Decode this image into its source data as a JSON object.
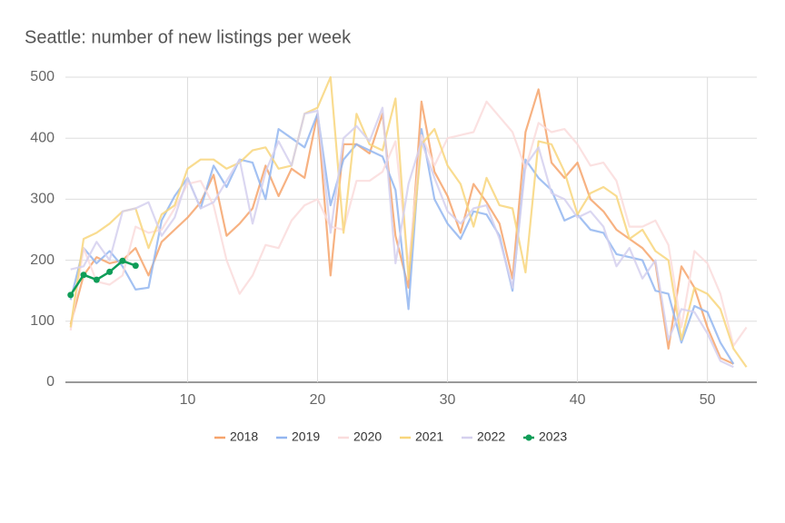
{
  "chart_data": {
    "type": "line",
    "title": "Seattle: number of new listings per week",
    "x": [
      1,
      2,
      3,
      4,
      5,
      6,
      7,
      8,
      9,
      10,
      11,
      12,
      13,
      14,
      15,
      16,
      17,
      18,
      19,
      20,
      21,
      22,
      23,
      24,
      25,
      26,
      27,
      28,
      29,
      30,
      31,
      32,
      33,
      34,
      35,
      36,
      37,
      38,
      39,
      40,
      41,
      42,
      43,
      44,
      45,
      46,
      47,
      48,
      49,
      50,
      51,
      52,
      53
    ],
    "xlim": [
      0.6,
      53.8
    ],
    "xticks": [
      10,
      20,
      30,
      40,
      50
    ],
    "ylim": [
      0,
      500
    ],
    "yticks": [
      0,
      100,
      200,
      300,
      400,
      500
    ],
    "grid": true,
    "legend": "bottom",
    "series": [
      {
        "name": "2018",
        "color": "#f6a46c",
        "values": [
          95,
          175,
          205,
          195,
          200,
          220,
          175,
          230,
          250,
          270,
          295,
          340,
          240,
          260,
          285,
          355,
          305,
          350,
          335,
          440,
          175,
          390,
          390,
          375,
          440,
          240,
          155,
          460,
          345,
          305,
          245,
          325,
          295,
          260,
          170,
          410,
          480,
          360,
          335,
          360,
          300,
          280,
          250,
          235,
          220,
          195,
          55,
          190,
          155,
          90,
          40,
          30,
          null
        ]
      },
      {
        "name": "2019",
        "color": "#93b6f0",
        "values": [
          135,
          220,
          195,
          215,
          190,
          152,
          155,
          265,
          305,
          335,
          285,
          355,
          320,
          365,
          360,
          300,
          415,
          400,
          385,
          440,
          290,
          365,
          390,
          380,
          370,
          315,
          120,
          415,
          300,
          260,
          235,
          280,
          275,
          240,
          150,
          365,
          335,
          315,
          265,
          275,
          250,
          245,
          210,
          205,
          200,
          150,
          145,
          65,
          125,
          115,
          65,
          30,
          null
        ]
      },
      {
        "name": "2020",
        "color": "#fadcdc",
        "values": [
          85,
          220,
          165,
          160,
          175,
          255,
          245,
          250,
          285,
          325,
          330,
          290,
          200,
          145,
          175,
          225,
          220,
          265,
          290,
          300,
          255,
          250,
          330,
          330,
          345,
          395,
          190,
          405,
          355,
          400,
          405,
          410,
          460,
          435,
          410,
          350,
          425,
          410,
          415,
          390,
          355,
          360,
          330,
          255,
          255,
          265,
          225,
          90,
          215,
          195,
          145,
          60,
          90
        ]
      },
      {
        "name": "2021",
        "color": "#f8d67c",
        "values": [
          90,
          235,
          245,
          260,
          280,
          285,
          220,
          275,
          290,
          350,
          365,
          365,
          350,
          360,
          380,
          385,
          350,
          355,
          440,
          450,
          500,
          245,
          440,
          390,
          380,
          465,
          170,
          390,
          415,
          355,
          325,
          255,
          335,
          290,
          285,
          180,
          395,
          390,
          345,
          275,
          310,
          320,
          305,
          235,
          250,
          215,
          200,
          70,
          155,
          145,
          120,
          55,
          25
        ]
      },
      {
        "name": "2022",
        "color": "#d5d0ee",
        "values": [
          185,
          190,
          230,
          200,
          280,
          285,
          295,
          240,
          270,
          335,
          285,
          295,
          330,
          365,
          260,
          345,
          395,
          355,
          440,
          445,
          245,
          400,
          420,
          395,
          450,
          195,
          325,
          395,
          335,
          280,
          260,
          285,
          290,
          235,
          155,
          355,
          385,
          310,
          300,
          270,
          280,
          255,
          190,
          220,
          170,
          200,
          70,
          120,
          115,
          80,
          35,
          25,
          null
        ]
      },
      {
        "name": "2023",
        "color": "#0f9d58",
        "markers": true,
        "values": [
          143,
          176,
          168,
          181,
          199,
          191,
          null,
          null,
          null,
          null,
          null,
          null,
          null,
          null,
          null,
          null,
          null,
          null,
          null,
          null,
          null,
          null,
          null,
          null,
          null,
          null,
          null,
          null,
          null,
          null,
          null,
          null,
          null,
          null,
          null,
          null,
          null,
          null,
          null,
          null,
          null,
          null,
          null,
          null,
          null,
          null,
          null,
          null,
          null,
          null,
          null,
          null,
          null
        ]
      }
    ]
  }
}
